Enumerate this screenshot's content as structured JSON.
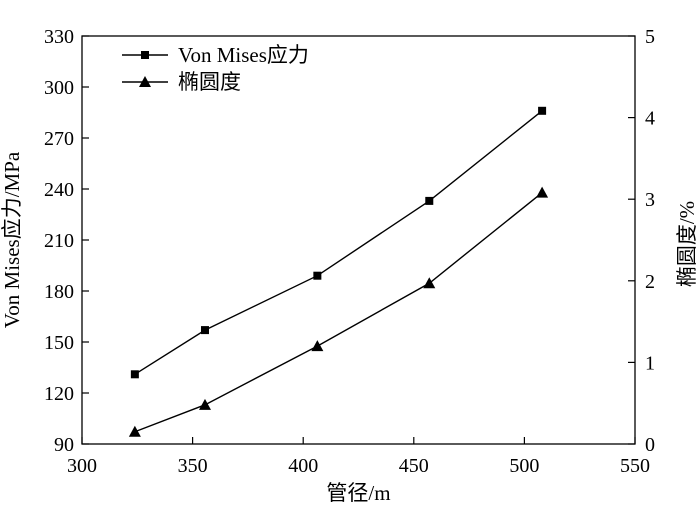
{
  "chart_data": {
    "type": "line",
    "xlabel": "管径/m",
    "ylabel_left": "Von Mises应力/MPa",
    "ylabel_right": "椭圆度/%",
    "xlim": [
      300,
      550
    ],
    "ylim_left": [
      90,
      330
    ],
    "ylim_right": [
      0,
      5
    ],
    "x_ticks": [
      300,
      350,
      400,
      450,
      500,
      550
    ],
    "y_left_ticks": [
      90,
      120,
      150,
      180,
      210,
      240,
      270,
      300,
      330
    ],
    "y_right_ticks": [
      0,
      1,
      2,
      3,
      4,
      5
    ],
    "grid": false,
    "legend_position": "top-left",
    "series": [
      {
        "name": "Von Mises应力",
        "axis": "left",
        "marker": "square",
        "x": [
          323.9,
          355.6,
          406.4,
          457,
          508
        ],
        "values": [
          131,
          157,
          189,
          233,
          286
        ]
      },
      {
        "name": "椭圆度",
        "axis": "right",
        "marker": "triangle",
        "x": [
          323.9,
          355.6,
          406.4,
          457,
          508
        ],
        "values": [
          0.15,
          0.48,
          1.2,
          1.97,
          3.08
        ]
      }
    ]
  },
  "colors": {
    "line": "#000000",
    "background": "#ffffff"
  }
}
